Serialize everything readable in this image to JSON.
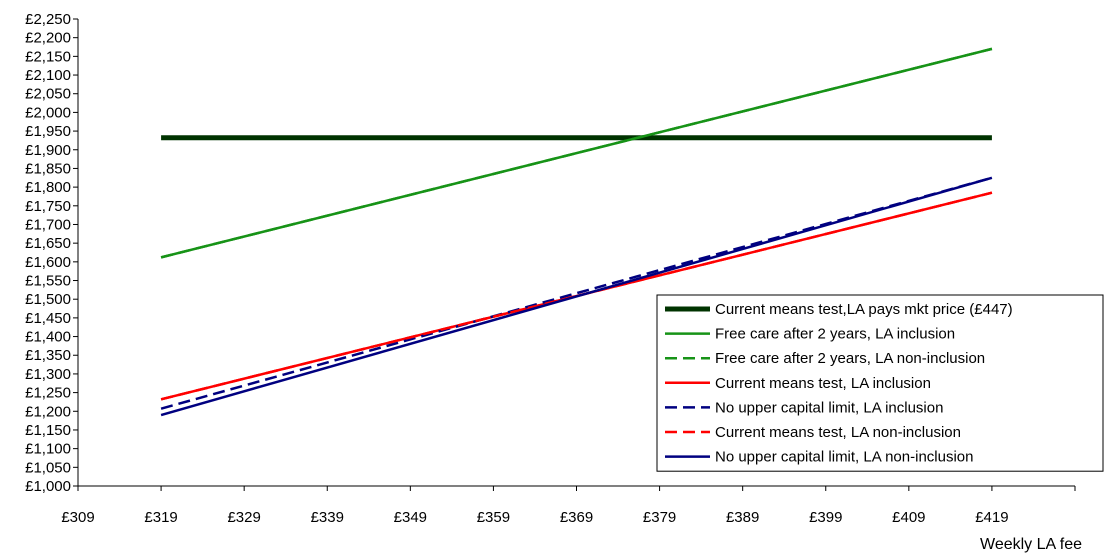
{
  "chart_data": {
    "type": "line",
    "title": "",
    "xlabel": "Weekly LA fee",
    "ylabel": "",
    "x_ticks": [
      "£309",
      "£319",
      "£329",
      "£339",
      "£349",
      "£359",
      "£369",
      "£379",
      "£389",
      "£399",
      "£409",
      "£419"
    ],
    "xlim": [
      309,
      429
    ],
    "ylim": [
      1000,
      2250
    ],
    "y_ticks": [
      "£1,000",
      "£1,050",
      "£1,100",
      "£1,150",
      "£1,200",
      "£1,250",
      "£1,300",
      "£1,350",
      "£1,400",
      "£1,450",
      "£1,500",
      "£1,550",
      "£1,600",
      "£1,650",
      "£1,700",
      "£1,750",
      "£1,800",
      "£1,850",
      "£1,900",
      "£1,950",
      "£2,000",
      "£2,050",
      "£2,100",
      "£2,150",
      "£2,200",
      "£2,250"
    ],
    "y_tick_values": [
      1000,
      1050,
      1100,
      1150,
      1200,
      1250,
      1300,
      1350,
      1400,
      1450,
      1500,
      1550,
      1600,
      1650,
      1700,
      1750,
      1800,
      1850,
      1900,
      1950,
      2000,
      2050,
      2100,
      2150,
      2200,
      2250
    ],
    "grid": false,
    "legend_position": "bottom-right",
    "series": [
      {
        "name": "Current means test,LA pays mkt price (£447)",
        "x": [
          319,
          419
        ],
        "values": [
          1932,
          1932
        ],
        "color": "#003300",
        "style": "solid",
        "width": "thick"
      },
      {
        "name": "Free care after 2 years, LA inclusion",
        "x": [
          319,
          419
        ],
        "values": [
          1612,
          2170
        ],
        "color": "#179317",
        "style": "solid",
        "width": "normal"
      },
      {
        "name": "Free care after 2 years, LA non-inclusion",
        "x": [
          319,
          419
        ],
        "values": [
          1612,
          2170
        ],
        "color": "#179317",
        "style": "dashed",
        "width": "normal"
      },
      {
        "name": "Current means test, LA inclusion",
        "x": [
          319,
          419
        ],
        "values": [
          1232,
          1785
        ],
        "color": "#ff0000",
        "style": "solid",
        "width": "normal"
      },
      {
        "name": "No upper capital limit, LA inclusion",
        "x": [
          319,
          419
        ],
        "values": [
          1207,
          1825
        ],
        "color": "#000080",
        "style": "dashed",
        "width": "normal"
      },
      {
        "name": "Current means test, LA non-inclusion",
        "x": [
          319,
          419
        ],
        "values": [
          1232,
          1785
        ],
        "color": "#ff0000",
        "style": "dashed",
        "width": "normal"
      },
      {
        "name": "No upper capital limit, LA non-inclusion",
        "x": [
          319,
          419
        ],
        "values": [
          1190,
          1825
        ],
        "color": "#000080",
        "style": "solid",
        "width": "normal"
      }
    ]
  }
}
